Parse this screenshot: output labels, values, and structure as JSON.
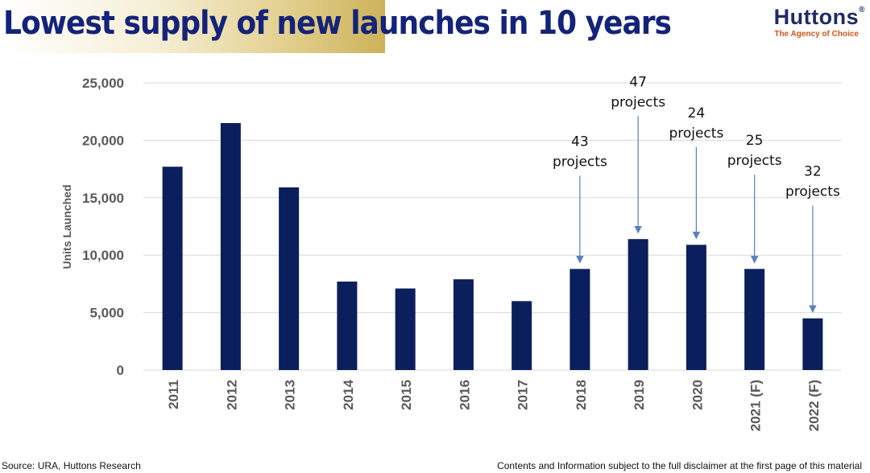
{
  "header": {
    "title": "Lowest supply of new launches in 10 years",
    "logo_name": "Huttons",
    "logo_reg": "®",
    "logo_tagline": "The Agency of Choice"
  },
  "footer": {
    "source": "Source: URA, Huttons Research",
    "disclaimer": "Contents and Information subject to the full disclaimer at the first page of this material"
  },
  "colors": {
    "bar": "#0b1f5c",
    "arrow": "#5b7fbf",
    "grid": "#d9d9d9",
    "tick_text": "#595959"
  },
  "chart_data": {
    "type": "bar",
    "title": "",
    "xlabel": "",
    "ylabel": "Units Launched",
    "categories": [
      "2011",
      "2012",
      "2013",
      "2014",
      "2015",
      "2016",
      "2017",
      "2018",
      "2019",
      "2020",
      "2021 (F)",
      "2022 (F)"
    ],
    "values": [
      17700,
      21500,
      15900,
      7700,
      7100,
      7900,
      6000,
      8800,
      11400,
      10900,
      8800,
      4500
    ],
    "ylim": [
      0,
      25000
    ],
    "yticks": [
      0,
      5000,
      10000,
      15000,
      20000,
      25000
    ],
    "ytick_labels": [
      "0",
      "5,000",
      "10,000",
      "15,000",
      "20,000",
      "25,000"
    ],
    "grid": true,
    "legend": "none",
    "annotations": [
      {
        "category": "2018",
        "lines": [
          "43",
          "projects"
        ],
        "text_value": 19500
      },
      {
        "category": "2019",
        "lines": [
          "47",
          "projects"
        ],
        "text_value": 24700
      },
      {
        "category": "2020",
        "lines": [
          "24",
          "projects"
        ],
        "text_value": 22000
      },
      {
        "category": "2021 (F)",
        "lines": [
          "25",
          "projects"
        ],
        "text_value": 19600
      },
      {
        "category": "2022 (F)",
        "lines": [
          "32",
          "projects"
        ],
        "text_value": 16900
      }
    ]
  }
}
